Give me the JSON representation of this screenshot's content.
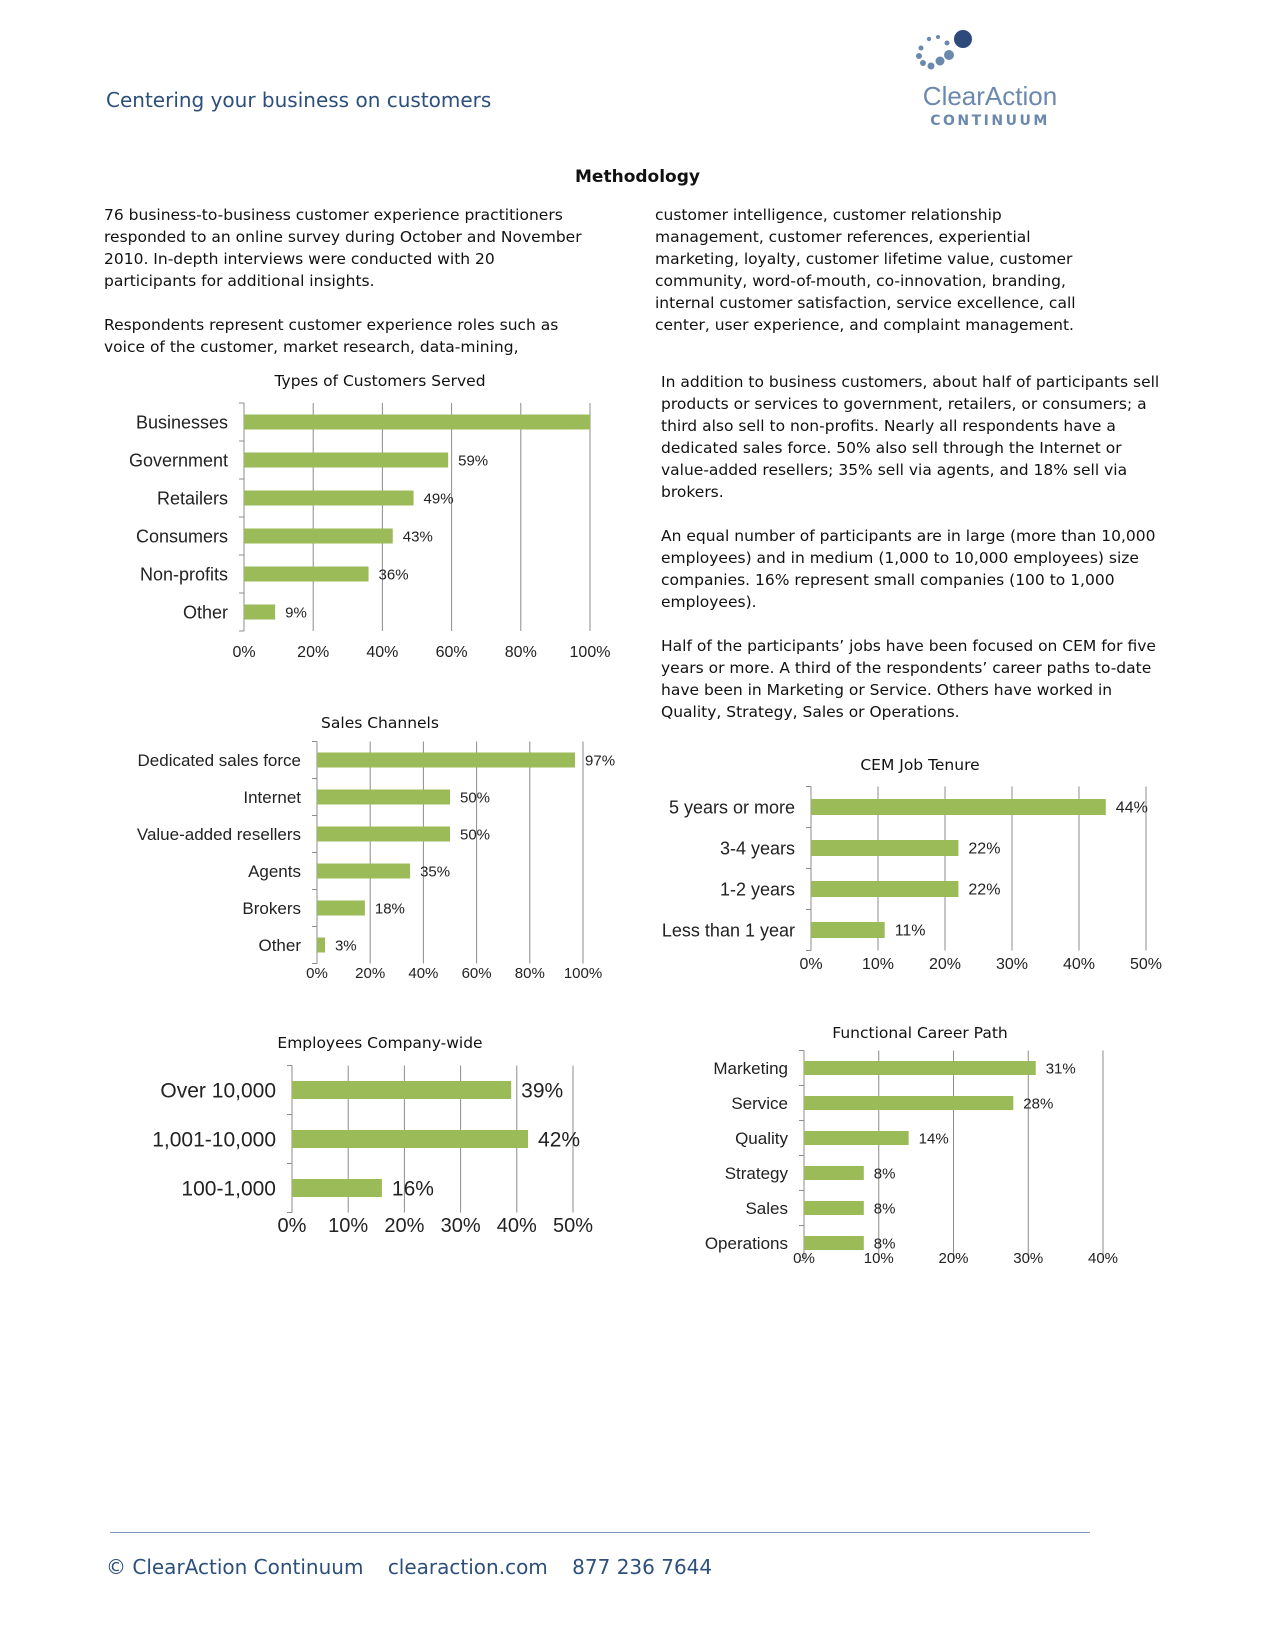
{
  "header": {
    "tagline": "Centering your business on customers",
    "logo": {
      "name": "ClearAction",
      "sub": "CONTINUUM",
      "dot_color": "#6b88ad",
      "dark_dot_color": "#2d4a7a"
    }
  },
  "section_title": "Methodology",
  "intro": {
    "col1": "76 business-to-business customer experience practitioners responded to an online survey during October and November 2010.  In-depth interviews were conducted with 20 participants for additional insights.\n\nRespondents represent customer experience roles such as voice of the customer, market research, data-mining,",
    "col2": "customer intelligence, customer relationship management, customer references, experiential marketing, loyalty, customer lifetime value, customer community, word-of-mouth, co-innovation, branding, internal customer satisfaction, service excellence, call center, user experience, and complaint management."
  },
  "findings": [
    "In addition to business customers, about half of participants sell products or services to government, retailers, or consumers; a third also sell to non-profits.  Nearly all respondents have a dedicated sales force.  50% also sell through the Internet or value-added resellers; 35% sell via agents, and 18% sell via brokers.",
    "An equal number of participants are in large (more than 10,000 employees) and in medium (1,000 to 10,000 employees) size companies.  16% represent small companies (100 to 1,000 employees).",
    "Half of the participants’ jobs have been focused on CEM for five years or more.  A third of the respondents’ career paths to-date have been in Marketing or Service.  Others have worked in Quality, Strategy, Sales or Operations."
  ],
  "chart_data": [
    {
      "id": "customers",
      "type": "bar",
      "orientation": "horizontal",
      "title": "Types of Customers Served",
      "categories": [
        "Businesses",
        "Government",
        "Retailers",
        "Consumers",
        "Non-profits",
        "Other"
      ],
      "values": [
        100,
        59,
        49,
        43,
        36,
        9
      ],
      "data_labels": [
        "",
        "59%",
        "49%",
        "43%",
        "36%",
        "9%"
      ],
      "ticks": [
        "0%",
        "20%",
        "40%",
        "60%",
        "80%",
        "100%"
      ],
      "xlim": [
        0,
        100
      ],
      "grid": true,
      "bar_color": "#9bbb59"
    },
    {
      "id": "channels",
      "type": "bar",
      "orientation": "horizontal",
      "title": "Sales Channels",
      "categories": [
        "Dedicated sales force",
        "Internet",
        "Value-added resellers",
        "Agents",
        "Brokers",
        "Other"
      ],
      "values": [
        97,
        50,
        50,
        35,
        18,
        3
      ],
      "data_labels": [
        "97%",
        "50%",
        "50%",
        "35%",
        "18%",
        "3%"
      ],
      "ticks": [
        "0%",
        "20%",
        "40%",
        "60%",
        "80%",
        "100%"
      ],
      "xlim": [
        0,
        100
      ],
      "grid": true,
      "bar_color": "#9bbb59"
    },
    {
      "id": "employees",
      "type": "bar",
      "orientation": "horizontal",
      "title": "Employees Company-wide",
      "categories": [
        "Over 10,000",
        "1,001-10,000",
        "100-1,000"
      ],
      "values": [
        39,
        42,
        16
      ],
      "data_labels": [
        "39%",
        "42%",
        "16%"
      ],
      "ticks": [
        "0%",
        "10%",
        "20%",
        "30%",
        "40%",
        "50%"
      ],
      "xlim": [
        0,
        50
      ],
      "grid": true,
      "bar_color": "#9bbb59"
    },
    {
      "id": "tenure",
      "type": "bar",
      "orientation": "horizontal",
      "title": "CEM Job Tenure",
      "categories": [
        "5 years or more",
        "3-4 years",
        "1-2 years",
        "Less than 1 year"
      ],
      "values": [
        44,
        22,
        22,
        11
      ],
      "data_labels": [
        "44%",
        "22%",
        "22%",
        "11%"
      ],
      "ticks": [
        "0%",
        "10%",
        "20%",
        "30%",
        "40%",
        "50%"
      ],
      "xlim": [
        0,
        50
      ],
      "grid": true,
      "bar_color": "#9bbb59"
    },
    {
      "id": "career",
      "type": "bar",
      "orientation": "horizontal",
      "title": "Functional Career Path",
      "categories": [
        "Marketing",
        "Service",
        "Quality",
        "Strategy",
        "Sales",
        "Operations"
      ],
      "values": [
        31,
        28,
        14,
        8,
        8,
        8
      ],
      "data_labels": [
        "31%",
        "28%",
        "14%",
        "8%",
        "8%",
        "8%"
      ],
      "ticks": [
        "0%",
        "10%",
        "20%",
        "30%",
        "40%"
      ],
      "xlim": [
        0,
        40
      ],
      "grid": true,
      "bar_color": "#9bbb59"
    }
  ],
  "footer": {
    "copyright": "© ClearAction Continuum",
    "website": "clearaction.com",
    "phone": "877 236 7644"
  }
}
